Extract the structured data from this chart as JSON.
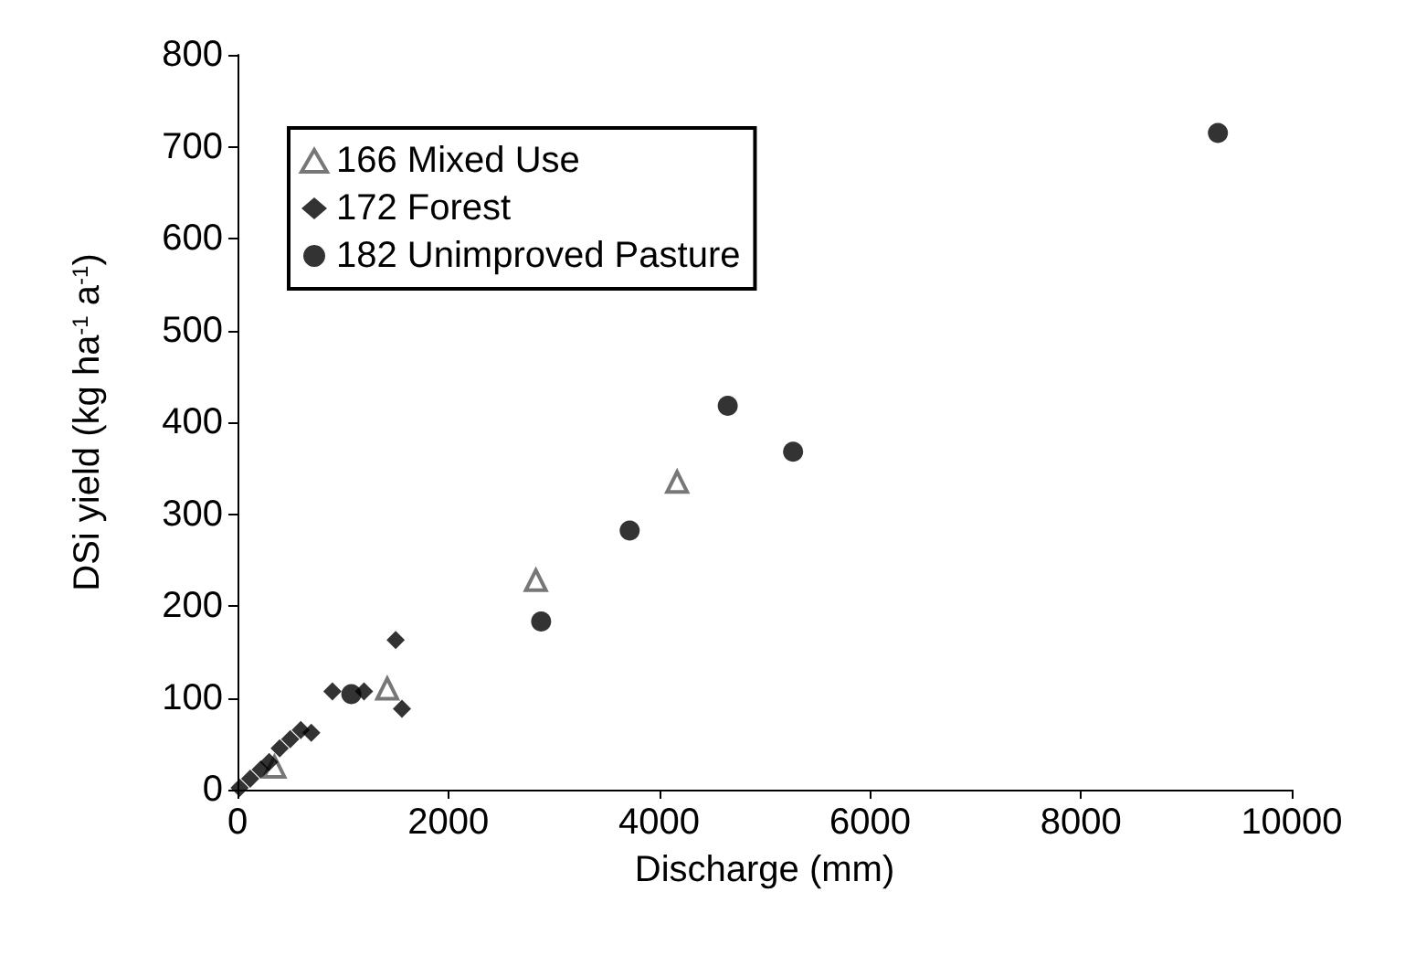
{
  "chart_data": {
    "type": "scatter",
    "xlabel": "Discharge (mm)",
    "ylabel": "DSi yield (kg ha$^{-1}$ a$^{-1}$)",
    "xlim": [
      0,
      10000
    ],
    "xticks": [
      0,
      2000,
      4000,
      6000,
      8000,
      10000
    ],
    "ylim": [
      0,
      800
    ],
    "yticks": [
      0,
      100,
      200,
      300,
      400,
      500,
      600,
      700,
      800
    ],
    "grid": false,
    "legend": "top left",
    "series": [
      {
        "name": "166 Mixed Use",
        "color": "#555555",
        "marker": "triangle",
        "x": [
          350,
          1420,
          2830,
          4170
        ],
        "values": [
          25,
          110,
          228,
          335
        ]
      },
      {
        "name": "172 Forest",
        "color": "#000000",
        "marker": "diamond",
        "x": [
          20,
          120,
          220,
          300,
          400,
          500,
          600,
          700,
          900,
          1200,
          1500,
          1560
        ],
        "values": [
          2,
          12,
          22,
          30,
          45,
          55,
          65,
          62,
          107,
          107,
          163,
          88
        ]
      },
      {
        "name": "182 Unimproved Pasture",
        "color": "#000000",
        "marker": "circle",
        "x": [
          1080,
          2880,
          3720,
          4650,
          5270,
          9300
        ],
        "values": [
          104,
          183,
          282,
          418,
          368,
          715
        ]
      }
    ]
  }
}
